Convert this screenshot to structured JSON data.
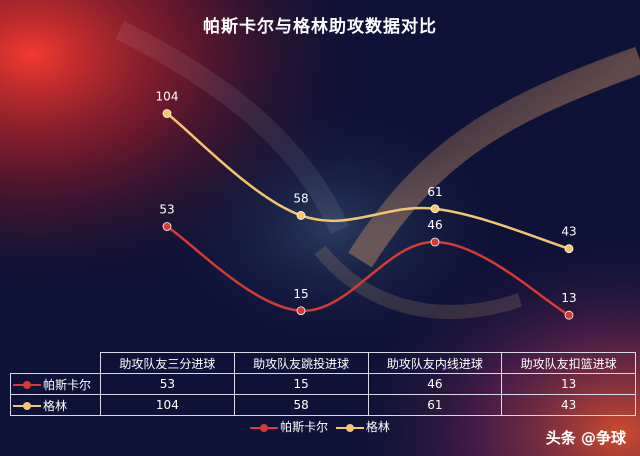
{
  "chart_data": {
    "type": "line",
    "title": "帕斯卡尔与格林助攻数据对比",
    "categories": [
      "助攻队友三分进球",
      "助攻队友跳投进球",
      "助攻队友内线进球",
      "助攻队友扣篮进球"
    ],
    "series": [
      {
        "name": "帕斯卡尔",
        "values": [
          53,
          15,
          46,
          13
        ],
        "color": "#d63a34"
      },
      {
        "name": "格林",
        "values": [
          104,
          58,
          61,
          43
        ],
        "color": "#f5c471"
      }
    ],
    "smooth": true,
    "data_labels": true,
    "data_table": true,
    "legend_position": "bottom"
  },
  "watermark": "头条 @争球"
}
